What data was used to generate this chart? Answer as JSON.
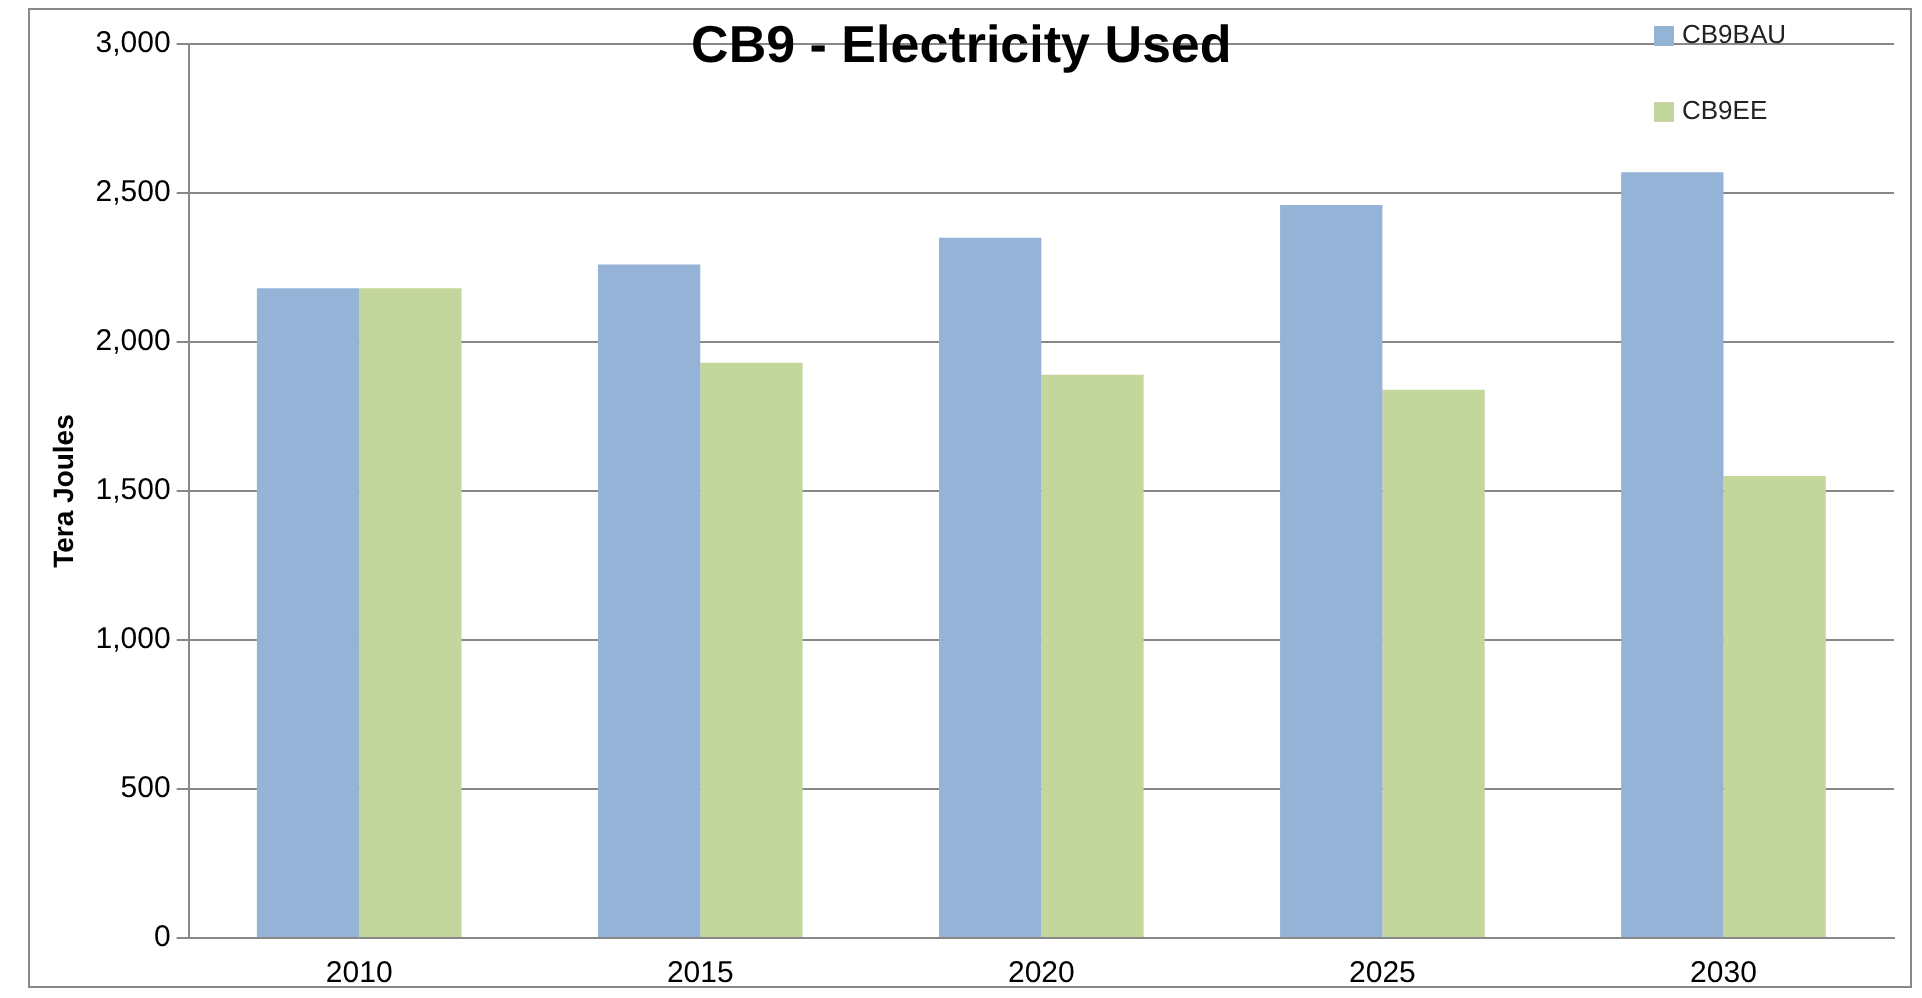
{
  "chart_data": {
    "type": "bar",
    "title": "CB9 - Electricity Used",
    "ylabel": "Tera Joules",
    "categories": [
      "2010",
      "2015",
      "2020",
      "2025",
      "2030"
    ],
    "series": [
      {
        "name": "CB9BAU",
        "color": "#95b3d7",
        "values": [
          2180,
          2260,
          2350,
          2460,
          2570
        ]
      },
      {
        "name": "CB9EE",
        "color": "#c3d69b",
        "values": [
          2180,
          1930,
          1890,
          1840,
          1550
        ]
      }
    ],
    "ylim": [
      0,
      3000
    ],
    "yticks": [
      0,
      500,
      {
        "value": 1000,
        "label": "1,000"
      },
      {
        "value": 1500,
        "label": "1,500"
      },
      {
        "value": 2000,
        "label": "2,000"
      },
      {
        "value": 2500,
        "label": "2,500"
      },
      {
        "value": 3000,
        "label": "3,000"
      }
    ],
    "grid": "y",
    "legend": "top right"
  }
}
